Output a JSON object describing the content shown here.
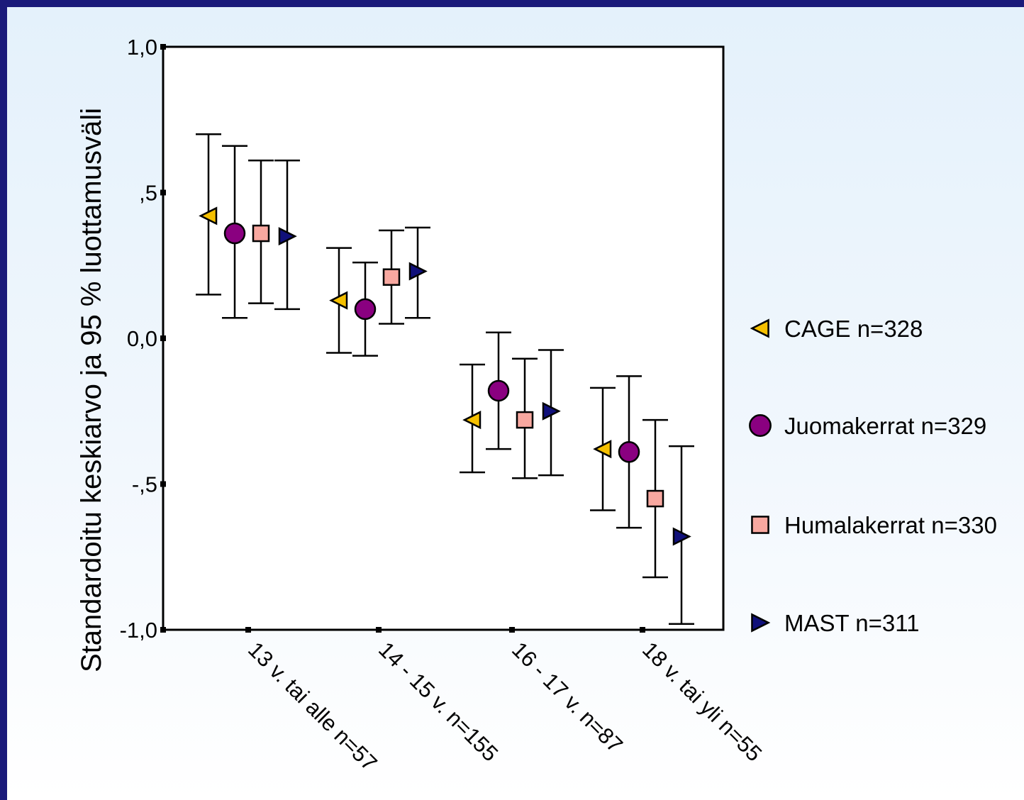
{
  "chart_data": {
    "type": "scatter",
    "ylabel": "Standardoitu keskiarvo ja 95 % luottamusväli",
    "xlabel": "",
    "ylim": [
      -1.0,
      1.0
    ],
    "yticks": [
      {
        "value": 1.0,
        "label": "1,0"
      },
      {
        "value": 0.5,
        "label": ",5"
      },
      {
        "value": 0.0,
        "label": "0,0"
      },
      {
        "value": -0.5,
        "label": "-,5"
      },
      {
        "value": -1.0,
        "label": "-1,0"
      }
    ],
    "categories": [
      "13 v. tai alle n=57",
      "14 - 15 v. n=155",
      "16 - 17 v. n=87",
      "18 v. tai yli n=55"
    ],
    "legend_position": "right",
    "series": [
      {
        "name": "CAGE n=328",
        "marker": "triangle-left",
        "color": "#f5c000",
        "mean": [
          0.42,
          0.13,
          -0.28,
          -0.38
        ],
        "lower": [
          0.15,
          -0.05,
          -0.46,
          -0.59
        ],
        "upper": [
          0.7,
          0.31,
          -0.09,
          -0.17
        ]
      },
      {
        "name": "Juomakerrat n=329",
        "marker": "circle",
        "color": "#8a0080",
        "mean": [
          0.36,
          0.1,
          -0.18,
          -0.39
        ],
        "lower": [
          0.07,
          -0.06,
          -0.38,
          -0.65
        ],
        "upper": [
          0.66,
          0.26,
          0.02,
          -0.13
        ]
      },
      {
        "name": "Humalakerrat n=330",
        "marker": "square",
        "color": "#f8a8a0",
        "mean": [
          0.36,
          0.21,
          -0.28,
          -0.55
        ],
        "lower": [
          0.12,
          0.05,
          -0.48,
          -0.82
        ],
        "upper": [
          0.61,
          0.37,
          -0.07,
          -0.28
        ]
      },
      {
        "name": "MAST n=311",
        "marker": "triangle-right",
        "color": "#10107a",
        "mean": [
          0.35,
          0.23,
          -0.25,
          -0.68
        ],
        "lower": [
          0.1,
          0.07,
          -0.47,
          -0.98
        ],
        "upper": [
          0.61,
          0.38,
          -0.04,
          -0.37
        ]
      }
    ]
  }
}
